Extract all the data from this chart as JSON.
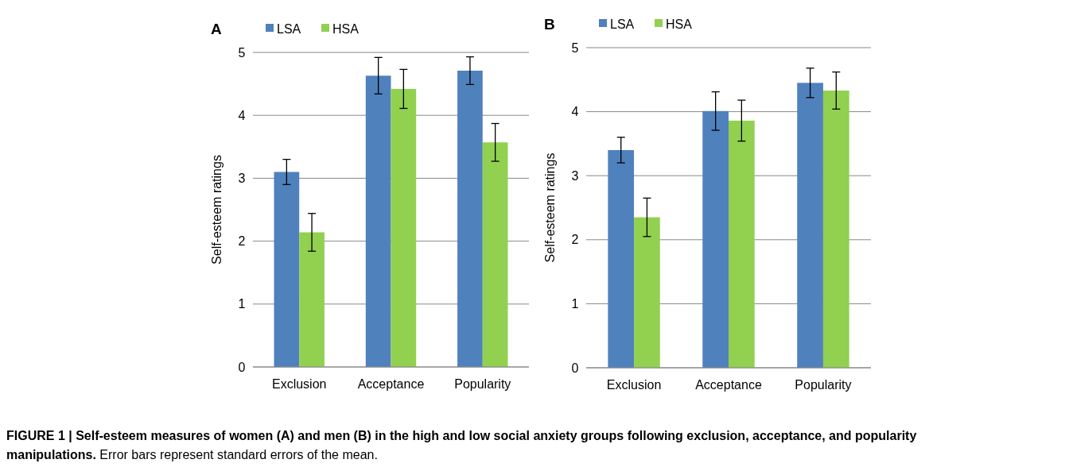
{
  "chart_data": [
    {
      "type": "bar",
      "title": "A",
      "ylabel": "Self-esteem ratings",
      "categories": [
        "Exclusion",
        "Acceptance",
        "Popularity"
      ],
      "series": [
        {
          "name": "LSA",
          "color": "#4f81bd",
          "values": [
            3.1,
            4.63,
            4.71
          ],
          "errors": [
            0.2,
            0.29,
            0.22
          ]
        },
        {
          "name": "HSA",
          "color": "#92d050",
          "values": [
            2.14,
            4.42,
            3.57
          ],
          "errors": [
            0.3,
            0.31,
            0.3
          ]
        }
      ],
      "ylim": [
        0,
        5
      ],
      "yticks": [
        0,
        1,
        2,
        3,
        4,
        5
      ],
      "grid": "y",
      "legend": "top left",
      "annotations": [
        "FIGURE 1 | Self-esteem measures of women (A) and men (B) in the high and low social anxiety groups following exclusion, acceptance, and popularity manipulations.",
        "Error bars represent standard errors of the mean."
      ]
    },
    {
      "type": "bar",
      "title": "B",
      "ylabel": "Self-esteem ratings",
      "categories": [
        "Exclusion",
        "Acceptance",
        "Popularity"
      ],
      "series": [
        {
          "name": "LSA",
          "color": "#4f81bd",
          "values": [
            3.4,
            4.01,
            4.45
          ],
          "errors": [
            0.2,
            0.3,
            0.23
          ]
        },
        {
          "name": "HSA",
          "color": "#92d050",
          "values": [
            2.35,
            3.86,
            4.33
          ],
          "errors": [
            0.3,
            0.32,
            0.29
          ]
        }
      ],
      "ylim": [
        0,
        5
      ],
      "yticks": [
        0,
        1,
        2,
        3,
        4,
        5
      ],
      "grid": "y",
      "legend": "top left"
    }
  ]
}
